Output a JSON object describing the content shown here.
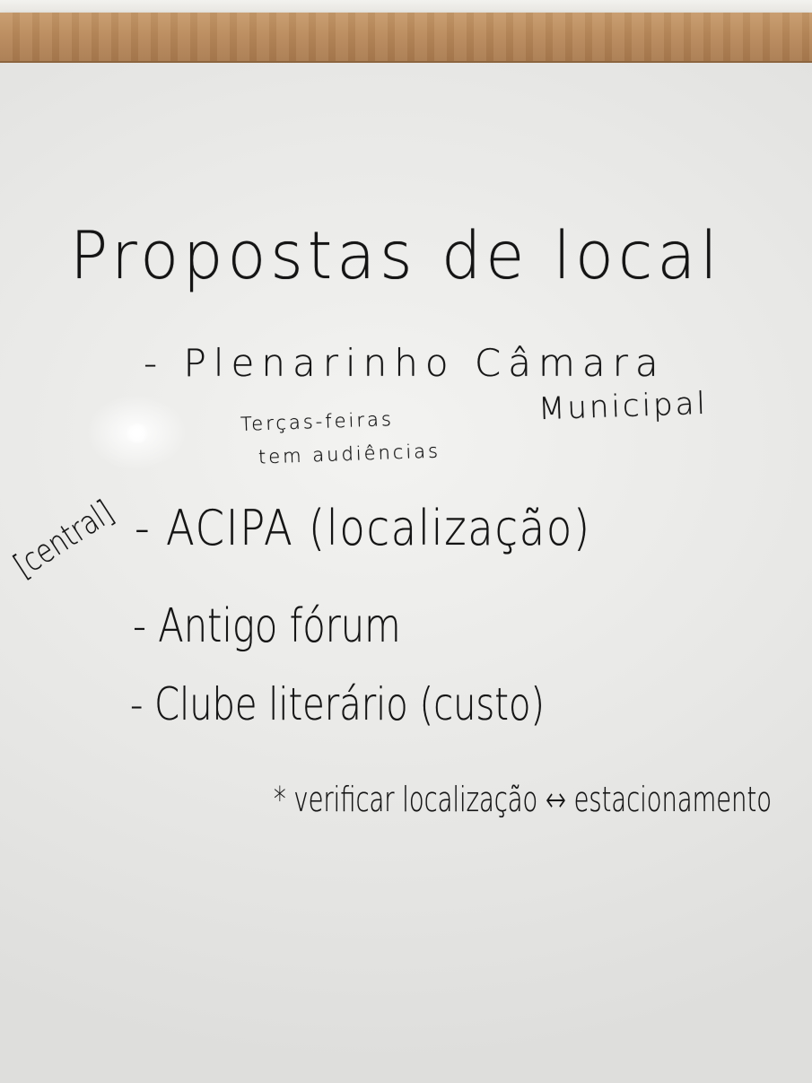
{
  "whiteboard": {
    "title": "Propostas de local",
    "items": [
      {
        "text": "- Plenarinho Câmara",
        "continuation": "Municipal",
        "note": [
          "Terças-feiras",
          "tem audiências"
        ]
      },
      {
        "text": "- ACIPA (localização)"
      },
      {
        "text": "- Antigo fórum"
      },
      {
        "text": "- Clube literário (custo)"
      }
    ],
    "side_note": "central",
    "footer_note": "* verificar localização ↔ estacionamento"
  },
  "colors": {
    "marker_ink": "#141414",
    "board_surface": "#ececea",
    "frame_wood": "#b9895a"
  }
}
